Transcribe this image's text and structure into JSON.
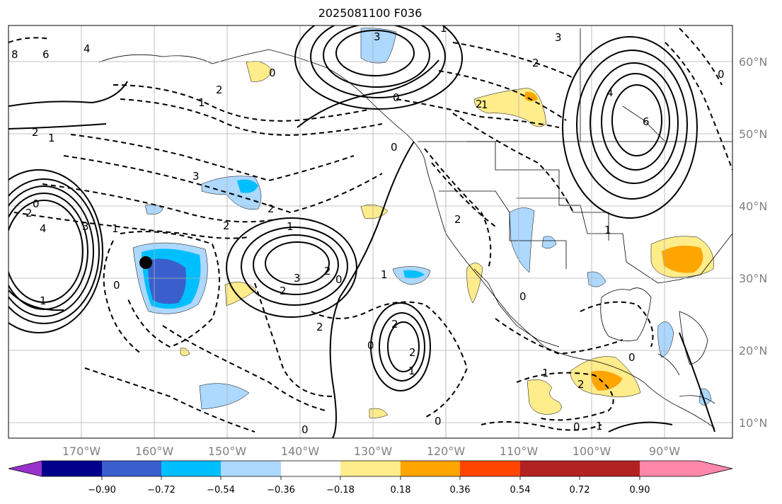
{
  "title": "2025081100 F036",
  "lon_labels": [
    "170°W",
    "160°W",
    "150°W",
    "140°W",
    "130°W",
    "120°W",
    "110°W",
    "100°W",
    "90°W"
  ],
  "lat_labels": [
    "60°N",
    "50°N",
    "40°N",
    "30°N",
    "20°N",
    "10°N"
  ],
  "colorbar": {
    "colors": [
      "#9932cc",
      "#00008b",
      "#3a5fcd",
      "#00bfff",
      "#add8ff",
      "#ffffff",
      "#ffec8b",
      "#ffa500",
      "#ff4500",
      "#b22222",
      "#ff88aa"
    ],
    "tick_labels": [
      "−0.90",
      "−0.72",
      "−0.54",
      "−0.36",
      "−0.18",
      "0.18",
      "0.36",
      "0.54",
      "0.72",
      "0.90"
    ]
  },
  "contour_labels": [
    "8",
    "6",
    "4",
    "2",
    "1",
    "0",
    "4",
    "3",
    "2",
    "0",
    "1",
    "2",
    "3",
    "3",
    "2",
    "1",
    "2",
    "0",
    "1",
    "2",
    "0",
    "1",
    "0",
    "0",
    "2",
    "1",
    "2",
    "2",
    "2",
    "1",
    "0",
    "3",
    "3",
    "4",
    "6",
    "0",
    "0",
    "1",
    "2",
    "0",
    "2",
    "2",
    "1",
    "1",
    "0",
    "1",
    "2",
    "0",
    "0",
    "1"
  ],
  "marker": "storm-center-dot"
}
